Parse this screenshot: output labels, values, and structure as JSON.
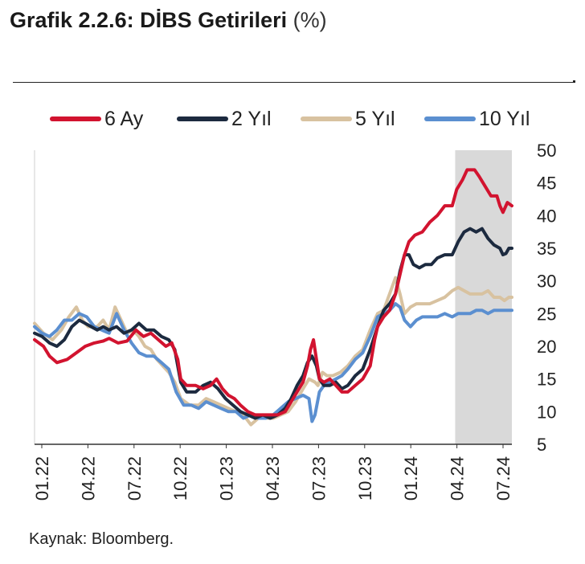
{
  "title": {
    "main": "Grafik 2.2.6: DİBS Getirileri",
    "unit": "(%)"
  },
  "source": "Kaynak: Bloomberg.",
  "chart_data": {
    "type": "line",
    "xlabels": [
      "01.22",
      "04.22",
      "07.22",
      "10.22",
      "01.23",
      "04.23",
      "07.23",
      "10.23",
      "01.24",
      "04.24",
      "07.24"
    ],
    "yticks": [
      "5",
      "10",
      "15",
      "20",
      "25",
      "30",
      "35",
      "40",
      "45",
      "50"
    ],
    "ylim": [
      5,
      50
    ],
    "xrange": [
      0,
      32
    ],
    "shaded_range": [
      28.2,
      32
    ],
    "grid": false,
    "legend": "top",
    "series": [
      {
        "name": "6 Ay",
        "color": "#d2132f",
        "points": [
          [
            0,
            21
          ],
          [
            0.6,
            20
          ],
          [
            1,
            18.5
          ],
          [
            1.5,
            17.5
          ],
          [
            2.2,
            18
          ],
          [
            2.8,
            19
          ],
          [
            3.4,
            20
          ],
          [
            4,
            20.5
          ],
          [
            4.6,
            20.8
          ],
          [
            5,
            21.2
          ],
          [
            5.6,
            20.5
          ],
          [
            6.2,
            20.8
          ],
          [
            6.8,
            22.5
          ],
          [
            7.3,
            21.5
          ],
          [
            7.8,
            22
          ],
          [
            8.3,
            21
          ],
          [
            8.8,
            20
          ],
          [
            9.2,
            20.5
          ],
          [
            9.6,
            18
          ],
          [
            9.8,
            15
          ],
          [
            10.2,
            14
          ],
          [
            10.8,
            14
          ],
          [
            11.3,
            13.5
          ],
          [
            11.8,
            14
          ],
          [
            12.2,
            15
          ],
          [
            12.6,
            13.5
          ],
          [
            13,
            12.5
          ],
          [
            13.4,
            12
          ],
          [
            13.8,
            11
          ],
          [
            14.3,
            10
          ],
          [
            14.8,
            9.5
          ],
          [
            15.3,
            9.5
          ],
          [
            15.8,
            9.5
          ],
          [
            16.3,
            9.5
          ],
          [
            16.8,
            10
          ],
          [
            17.2,
            11.5
          ],
          [
            17.6,
            13
          ],
          [
            18,
            14.5
          ],
          [
            18.3,
            17
          ],
          [
            18.5,
            19.5
          ],
          [
            18.7,
            21
          ],
          [
            18.9,
            18
          ],
          [
            19.1,
            15
          ],
          [
            19.4,
            14.5
          ],
          [
            19.8,
            15
          ],
          [
            20.2,
            14
          ],
          [
            20.6,
            13
          ],
          [
            21,
            13
          ],
          [
            21.5,
            14
          ],
          [
            22,
            15
          ],
          [
            22.5,
            17
          ],
          [
            22.8,
            21
          ],
          [
            23,
            23
          ],
          [
            23.4,
            24.5
          ],
          [
            23.8,
            25.5
          ],
          [
            24.2,
            28
          ],
          [
            24.5,
            31
          ],
          [
            24.8,
            34
          ],
          [
            25.1,
            36
          ],
          [
            25.5,
            37
          ],
          [
            26,
            37.5
          ],
          [
            26.5,
            39
          ],
          [
            27,
            40
          ],
          [
            27.5,
            41.5
          ],
          [
            28,
            41.5
          ],
          [
            28.3,
            44
          ],
          [
            28.7,
            45.5
          ],
          [
            29,
            47
          ],
          [
            29.5,
            47
          ],
          [
            29.8,
            46
          ],
          [
            30.2,
            44.5
          ],
          [
            30.6,
            43
          ],
          [
            31,
            43
          ],
          [
            31.2,
            41.5
          ],
          [
            31.4,
            40.5
          ],
          [
            31.7,
            42
          ],
          [
            32,
            41.5
          ]
        ]
      },
      {
        "name": "2 Yıl",
        "color": "#1c2a3f",
        "points": [
          [
            0,
            22
          ],
          [
            0.5,
            21.5
          ],
          [
            1,
            20.5
          ],
          [
            1.5,
            20
          ],
          [
            2,
            21
          ],
          [
            2.5,
            23
          ],
          [
            3,
            24
          ],
          [
            3.4,
            23.5
          ],
          [
            3.8,
            23
          ],
          [
            4.2,
            22.5
          ],
          [
            4.6,
            23
          ],
          [
            5,
            22.5
          ],
          [
            5.5,
            23
          ],
          [
            6,
            22
          ],
          [
            6.5,
            22.5
          ],
          [
            7,
            23.5
          ],
          [
            7.5,
            22.5
          ],
          [
            8,
            22.5
          ],
          [
            8.5,
            21.5
          ],
          [
            9,
            21
          ],
          [
            9.4,
            19.5
          ],
          [
            9.8,
            14.5
          ],
          [
            10.2,
            13
          ],
          [
            10.8,
            13
          ],
          [
            11.3,
            14
          ],
          [
            11.8,
            14.5
          ],
          [
            12.3,
            13.5
          ],
          [
            12.8,
            12
          ],
          [
            13.3,
            11
          ],
          [
            13.8,
            10
          ],
          [
            14.3,
            9.5
          ],
          [
            14.8,
            9
          ],
          [
            15.3,
            9.5
          ],
          [
            15.8,
            9
          ],
          [
            16.3,
            9.5
          ],
          [
            16.8,
            10.5
          ],
          [
            17.2,
            12
          ],
          [
            17.6,
            14
          ],
          [
            18,
            15.5
          ],
          [
            18.3,
            17.5
          ],
          [
            18.6,
            18.5
          ],
          [
            18.9,
            17
          ],
          [
            19.1,
            15
          ],
          [
            19.4,
            14
          ],
          [
            19.8,
            14
          ],
          [
            20.2,
            14.5
          ],
          [
            20.6,
            13.5
          ],
          [
            21,
            14
          ],
          [
            21.5,
            15.5
          ],
          [
            22,
            16.5
          ],
          [
            22.5,
            19.5
          ],
          [
            23,
            23
          ],
          [
            23.4,
            25.5
          ],
          [
            23.8,
            26.5
          ],
          [
            24.2,
            28
          ],
          [
            24.5,
            31.5
          ],
          [
            24.8,
            34
          ],
          [
            25.1,
            34
          ],
          [
            25.4,
            32.5
          ],
          [
            25.8,
            32
          ],
          [
            26.2,
            32.5
          ],
          [
            26.6,
            32.5
          ],
          [
            27,
            33.5
          ],
          [
            27.5,
            34
          ],
          [
            28,
            34
          ],
          [
            28.4,
            36
          ],
          [
            28.8,
            37.5
          ],
          [
            29.2,
            38
          ],
          [
            29.6,
            37.5
          ],
          [
            30,
            38
          ],
          [
            30.4,
            36.5
          ],
          [
            30.8,
            35.5
          ],
          [
            31.2,
            35
          ],
          [
            31.4,
            34
          ],
          [
            31.6,
            34.2
          ],
          [
            31.8,
            35
          ],
          [
            32,
            35
          ]
        ]
      },
      {
        "name": "5 Yıl",
        "color": "#d8c2a0",
        "points": [
          [
            0,
            23.5
          ],
          [
            0.6,
            22
          ],
          [
            1.2,
            21
          ],
          [
            1.8,
            22.5
          ],
          [
            2.3,
            24.5
          ],
          [
            2.8,
            26
          ],
          [
            3.2,
            24
          ],
          [
            3.6,
            23
          ],
          [
            4.2,
            23
          ],
          [
            4.6,
            24
          ],
          [
            5,
            22.5
          ],
          [
            5.4,
            26
          ],
          [
            5.8,
            24
          ],
          [
            6.2,
            22
          ],
          [
            6.6,
            22.5
          ],
          [
            7,
            21.5
          ],
          [
            7.4,
            20
          ],
          [
            7.8,
            19.5
          ],
          [
            8.2,
            18
          ],
          [
            8.6,
            17
          ],
          [
            9,
            16
          ],
          [
            9.4,
            14.5
          ],
          [
            9.8,
            12
          ],
          [
            10.4,
            11
          ],
          [
            11,
            11
          ],
          [
            11.5,
            12
          ],
          [
            12,
            11.5
          ],
          [
            12.5,
            11
          ],
          [
            13,
            10.5
          ],
          [
            13.5,
            10
          ],
          [
            14,
            9.5
          ],
          [
            14.5,
            8
          ],
          [
            15,
            9
          ],
          [
            15.5,
            9
          ],
          [
            16,
            9
          ],
          [
            16.5,
            9.5
          ],
          [
            17,
            10
          ],
          [
            17.5,
            11.5
          ],
          [
            18,
            13.5
          ],
          [
            18.4,
            15
          ],
          [
            18.8,
            14.5
          ],
          [
            19,
            14
          ],
          [
            19.3,
            16
          ],
          [
            19.6,
            15.5
          ],
          [
            20,
            15.5
          ],
          [
            20.5,
            16
          ],
          [
            21,
            17
          ],
          [
            21.5,
            18.5
          ],
          [
            22,
            19.5
          ],
          [
            22.5,
            22.5
          ],
          [
            23,
            25
          ],
          [
            23.4,
            25.5
          ],
          [
            23.8,
            28
          ],
          [
            24.2,
            30.5
          ],
          [
            24.5,
            28
          ],
          [
            24.8,
            25
          ],
          [
            25.2,
            26
          ],
          [
            25.6,
            26.5
          ],
          [
            26,
            26.5
          ],
          [
            26.5,
            26.5
          ],
          [
            27,
            27
          ],
          [
            27.5,
            27.5
          ],
          [
            28,
            28.5
          ],
          [
            28.4,
            29
          ],
          [
            28.8,
            28.5
          ],
          [
            29.2,
            28
          ],
          [
            29.6,
            28
          ],
          [
            30,
            28
          ],
          [
            30.4,
            28.5
          ],
          [
            30.8,
            27.5
          ],
          [
            31.2,
            27.5
          ],
          [
            31.5,
            27
          ],
          [
            31.8,
            27.5
          ],
          [
            32,
            27.5
          ]
        ]
      },
      {
        "name": "10 Yıl",
        "color": "#5b8fd0",
        "points": [
          [
            0,
            23
          ],
          [
            0.5,
            22
          ],
          [
            1,
            21.5
          ],
          [
            1.5,
            22.5
          ],
          [
            2,
            24
          ],
          [
            2.5,
            24
          ],
          [
            3,
            25
          ],
          [
            3.5,
            24.5
          ],
          [
            4,
            23
          ],
          [
            4.5,
            22.5
          ],
          [
            5,
            22
          ],
          [
            5.5,
            25
          ],
          [
            6,
            22.5
          ],
          [
            6.5,
            20.5
          ],
          [
            7,
            19
          ],
          [
            7.5,
            18.5
          ],
          [
            8,
            18.5
          ],
          [
            8.5,
            17.5
          ],
          [
            9,
            16.5
          ],
          [
            9.5,
            13
          ],
          [
            10,
            11
          ],
          [
            10.5,
            11
          ],
          [
            11,
            10.5
          ],
          [
            11.5,
            11.5
          ],
          [
            12,
            11
          ],
          [
            12.5,
            10.5
          ],
          [
            13,
            10
          ],
          [
            13.5,
            10
          ],
          [
            14,
            9
          ],
          [
            14.5,
            9.5
          ],
          [
            15,
            9
          ],
          [
            15.5,
            9
          ],
          [
            16,
            9.5
          ],
          [
            16.5,
            10.5
          ],
          [
            17,
            11.5
          ],
          [
            17.5,
            12
          ],
          [
            18,
            12.5
          ],
          [
            18.4,
            12
          ],
          [
            18.6,
            8.5
          ],
          [
            18.8,
            9.5
          ],
          [
            19.1,
            13
          ],
          [
            19.4,
            14
          ],
          [
            19.8,
            14.5
          ],
          [
            20.2,
            15
          ],
          [
            20.6,
            15.5
          ],
          [
            21,
            16.5
          ],
          [
            21.5,
            18
          ],
          [
            22,
            19
          ],
          [
            22.5,
            21.5
          ],
          [
            23,
            24.5
          ],
          [
            23.4,
            25
          ],
          [
            23.8,
            25.5
          ],
          [
            24.2,
            26.5
          ],
          [
            24.5,
            26
          ],
          [
            24.8,
            24
          ],
          [
            25.2,
            23
          ],
          [
            25.6,
            24
          ],
          [
            26,
            24.5
          ],
          [
            26.5,
            24.5
          ],
          [
            27,
            24.5
          ],
          [
            27.5,
            25
          ],
          [
            28,
            24.5
          ],
          [
            28.4,
            25
          ],
          [
            28.8,
            25
          ],
          [
            29.2,
            25
          ],
          [
            29.6,
            25.5
          ],
          [
            30,
            25.5
          ],
          [
            30.4,
            25
          ],
          [
            30.8,
            25.5
          ],
          [
            31.2,
            25.5
          ],
          [
            31.6,
            25.5
          ],
          [
            32,
            25.5
          ]
        ]
      }
    ]
  }
}
